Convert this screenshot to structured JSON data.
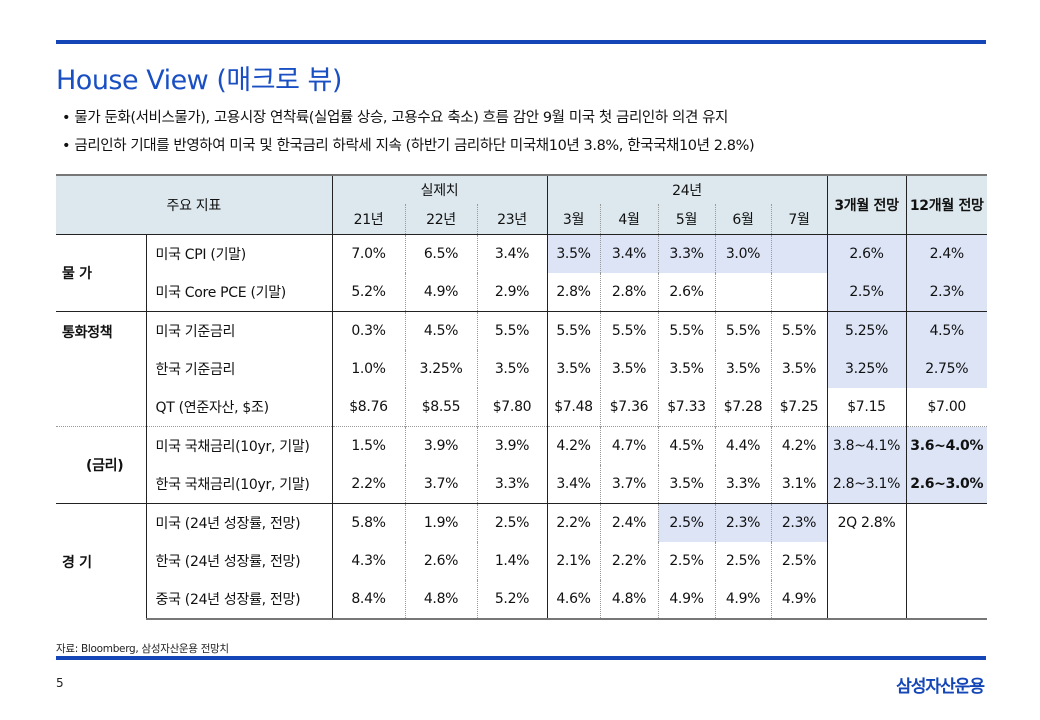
{
  "title": "House View (매크로 뷰)",
  "bullets": [
    "물가 둔화(서비스물가), 고용시장 연착륙(실업률 상승, 고용수요 축소) 흐름 감안 9월 미국 첫 금리인하 의견 유지",
    "금리인하 기대를 반영하여 미국 및 한국금리 하락세 지속 (하반기 금리하단 미국채10년 3.8%, 한국국채10년 2.8%)"
  ],
  "table": {
    "header": {
      "indicator": "주요 지표",
      "actual": "실제치",
      "y24": "24년",
      "f3": "3개월 전망",
      "f12": "12개월 전망",
      "cols": [
        "21년",
        "22년",
        "23년",
        "3월",
        "4월",
        "5월",
        "6월",
        "7월"
      ]
    },
    "groups": [
      {
        "label": "물  가",
        "rows": [
          {
            "label": "미국 CPI (기말)",
            "values": [
              "7.0%",
              "6.5%",
              "3.4%",
              "3.5%",
              "3.4%",
              "3.3%",
              "3.0%",
              "",
              "2.6%",
              "2.4%"
            ]
          },
          {
            "label": "미국 Core PCE (기말)",
            "values": [
              "5.2%",
              "4.9%",
              "2.9%",
              "2.8%",
              "2.8%",
              "2.6%",
              "",
              "",
              "2.5%",
              "2.3%"
            ]
          }
        ]
      },
      {
        "label": "통화정책",
        "rows": [
          {
            "label": "미국 기준금리",
            "values": [
              "0.3%",
              "4.5%",
              "5.5%",
              "5.5%",
              "5.5%",
              "5.5%",
              "5.5%",
              "5.5%",
              "5.25%",
              "4.5%"
            ]
          },
          {
            "label": "한국 기준금리",
            "values": [
              "1.0%",
              "3.25%",
              "3.5%",
              "3.5%",
              "3.5%",
              "3.5%",
              "3.5%",
              "3.5%",
              "3.25%",
              "2.75%"
            ]
          },
          {
            "label": "QT (연준자산, $조)",
            "values": [
              "$8.76",
              "$8.55",
              "$7.80",
              "$7.48",
              "$7.36",
              "$7.33",
              "$7.28",
              "$7.25",
              "$7.15",
              "$7.00"
            ]
          }
        ]
      },
      {
        "label": "(금리)",
        "rows": [
          {
            "label": "미국 국채금리(10yr, 기말)",
            "values": [
              "1.5%",
              "3.9%",
              "3.9%",
              "4.2%",
              "4.7%",
              "4.5%",
              "4.4%",
              "4.2%",
              "3.8~4.1%",
              "3.6~4.0%"
            ]
          },
          {
            "label": "한국 국채금리(10yr, 기말)",
            "values": [
              "2.2%",
              "3.7%",
              "3.3%",
              "3.4%",
              "3.7%",
              "3.5%",
              "3.3%",
              "3.1%",
              "2.8~3.1%",
              "2.6~3.0%"
            ]
          }
        ]
      },
      {
        "label": "경  기",
        "rows": [
          {
            "label": "미국 (24년 성장률, 전망)",
            "values": [
              "5.8%",
              "1.9%",
              "2.5%",
              "2.2%",
              "2.4%",
              "2.5%",
              "2.3%",
              "2.3%",
              "2Q 2.8%",
              ""
            ]
          },
          {
            "label": "한국 (24년 성장률, 전망)",
            "values": [
              "4.3%",
              "2.6%",
              "1.4%",
              "2.1%",
              "2.2%",
              "2.5%",
              "2.5%",
              "2.5%",
              "",
              ""
            ]
          },
          {
            "label": "중국 (24년 성장률, 전망)",
            "values": [
              "8.4%",
              "4.8%",
              "5.2%",
              "4.6%",
              "4.8%",
              "4.9%",
              "4.9%",
              "4.9%",
              "",
              ""
            ]
          }
        ]
      }
    ]
  },
  "source": "자료: Bloomberg, 삼성자산운용 전망치",
  "page_number": "5",
  "logo": "삼성자산운용"
}
